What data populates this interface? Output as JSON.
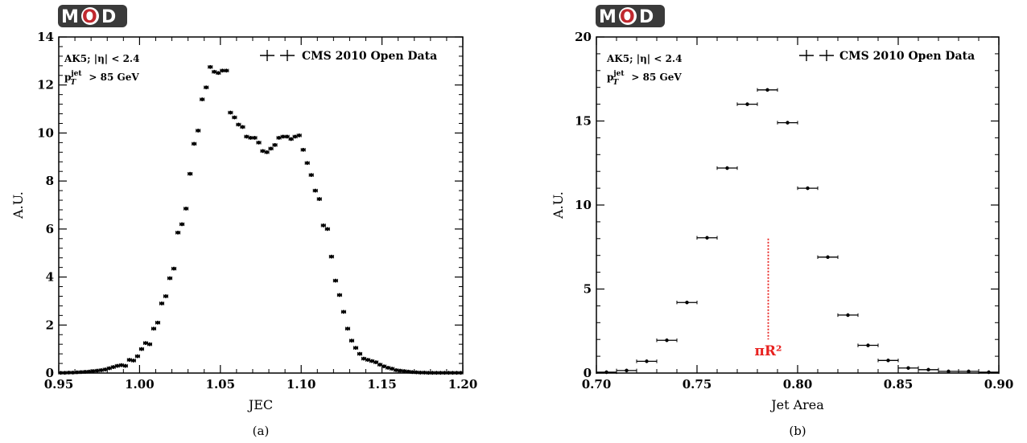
{
  "chart_data": [
    {
      "type": "scatter",
      "logo": "MOD",
      "xlabel": "JEC",
      "ylabel": "A.U.",
      "xlim": [
        0.95,
        1.2
      ],
      "ylim": [
        0,
        14
      ],
      "xticks": [
        "0.95",
        "1.00",
        "1.05",
        "1.10",
        "1.15",
        "1.20"
      ],
      "yticks": [
        "0",
        "2",
        "4",
        "6",
        "8",
        "10",
        "12",
        "14"
      ],
      "legend": "CMS 2010 Open Data",
      "legend_position": "top-right",
      "annotation_line1": "AK5; |η| < 2.4",
      "annotation_line2": "p_T^jet > 85 GeV",
      "caption": "(a)",
      "bin_width": 0.0025,
      "series": [
        {
          "x": [
            0.95125,
            0.95375,
            0.95625,
            0.95875,
            0.96125,
            0.96375,
            0.96625,
            0.96875,
            0.97125,
            0.97375,
            0.97625,
            0.97875,
            0.98125,
            0.98375,
            0.98625,
            0.98875,
            0.99125,
            0.99375,
            0.99625,
            0.99875,
            1.00125,
            1.00375,
            1.00625,
            1.00875,
            1.01125,
            1.01375,
            1.01625,
            1.01875,
            1.02125,
            1.02375,
            1.02625,
            1.02875,
            1.03125,
            1.03375,
            1.03625,
            1.03875,
            1.04125,
            1.04375,
            1.04625,
            1.04875,
            1.05125,
            1.05375,
            1.05625,
            1.05875,
            1.06125,
            1.06375,
            1.06625,
            1.06875,
            1.07125,
            1.07375,
            1.07625,
            1.07875,
            1.08125,
            1.08375,
            1.08625,
            1.08875,
            1.09125,
            1.09375,
            1.09625,
            1.09875,
            1.10125,
            1.10375,
            1.10625,
            1.10875,
            1.11125,
            1.11375,
            1.11625,
            1.11875,
            1.12125,
            1.12375,
            1.12625,
            1.12875,
            1.13125,
            1.13375,
            1.13625,
            1.13875,
            1.14125,
            1.14375,
            1.14625,
            1.14875,
            1.15125,
            1.15375,
            1.15625,
            1.15875,
            1.16125,
            1.16375,
            1.16625,
            1.16875,
            1.17125,
            1.17375,
            1.17625,
            1.17875,
            1.18125,
            1.18375,
            1.18625,
            1.18875,
            1.19125,
            1.19375,
            1.19625,
            1.19875
          ],
          "y": [
            0.01,
            0.01,
            0.02,
            0.02,
            0.03,
            0.04,
            0.05,
            0.06,
            0.08,
            0.1,
            0.12,
            0.15,
            0.2,
            0.25,
            0.3,
            0.33,
            0.3,
            0.55,
            0.52,
            0.7,
            1.0,
            1.25,
            1.2,
            1.85,
            2.1,
            2.9,
            3.2,
            3.95,
            4.35,
            5.85,
            6.2,
            6.85,
            8.3,
            9.55,
            10.1,
            11.4,
            11.9,
            12.75,
            12.55,
            12.5,
            12.6,
            12.6,
            10.85,
            10.65,
            10.35,
            10.25,
            9.85,
            9.8,
            9.8,
            9.6,
            9.25,
            9.2,
            9.35,
            9.5,
            9.8,
            9.85,
            9.85,
            9.75,
            9.85,
            9.9,
            9.3,
            8.75,
            8.25,
            7.6,
            7.25,
            6.15,
            6.0,
            4.85,
            3.85,
            3.25,
            2.55,
            1.85,
            1.35,
            1.05,
            0.8,
            0.6,
            0.55,
            0.5,
            0.45,
            0.35,
            0.28,
            0.22,
            0.18,
            0.12,
            0.1,
            0.08,
            0.06,
            0.04,
            0.03,
            0.02,
            0.02,
            0.01,
            0.01,
            0.01,
            0.01,
            0.01,
            0.01,
            0.01,
            0.01,
            0.01
          ]
        }
      ]
    },
    {
      "type": "scatter",
      "logo": "MOD",
      "xlabel": "Jet Area",
      "ylabel": "A.U.",
      "xlim": [
        0.7,
        0.9
      ],
      "ylim": [
        0,
        20
      ],
      "xticks": [
        "0.70",
        "0.75",
        "0.80",
        "0.85",
        "0.90"
      ],
      "yticks": [
        "0",
        "5",
        "10",
        "15",
        "20"
      ],
      "legend": "CMS 2010 Open Data",
      "legend_position": "top-right",
      "annotation_line1": "AK5; |η| < 2.4",
      "annotation_line2": "p_T^jet > 85 GeV",
      "reference_label": "πR²",
      "reference_x": 0.7854,
      "reference_color": "#e8211f",
      "caption": "(b)",
      "bin_width": 0.01,
      "series": [
        {
          "x": [
            0.705,
            0.715,
            0.725,
            0.735,
            0.745,
            0.755,
            0.765,
            0.775,
            0.785,
            0.795,
            0.805,
            0.815,
            0.825,
            0.835,
            0.845,
            0.855,
            0.865,
            0.875,
            0.885,
            0.895
          ],
          "y": [
            0.05,
            0.15,
            0.7,
            1.95,
            4.2,
            8.05,
            12.2,
            16.0,
            16.85,
            14.9,
            11.0,
            6.9,
            3.45,
            1.65,
            0.75,
            0.3,
            0.2,
            0.1,
            0.1,
            0.05
          ]
        }
      ]
    }
  ]
}
